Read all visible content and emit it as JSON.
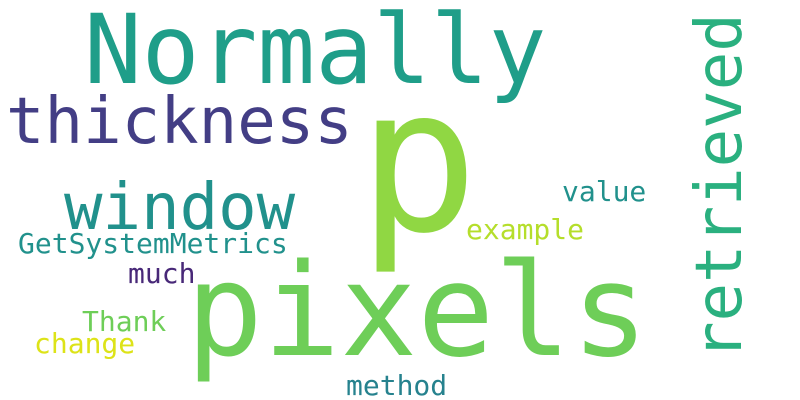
{
  "words": {
    "p": {
      "text": "p",
      "color": "#90d743"
    },
    "normally": {
      "text": "Normally",
      "color": "#1f9e89"
    },
    "pixels": {
      "text": "pixels",
      "color": "#6ece58"
    },
    "thickness": {
      "text": "thickness",
      "color": "#433e85"
    },
    "window": {
      "text": "window",
      "color": "#21918c"
    },
    "retrieved": {
      "text": "retrieved",
      "color": "#2ab07f"
    },
    "getsystemmetrics": {
      "text": "GetSystemMetrics",
      "color": "#21918c"
    },
    "value": {
      "text": "value",
      "color": "#21918c"
    },
    "example": {
      "text": "example",
      "color": "#b5de2b"
    },
    "much": {
      "text": "much",
      "color": "#482878"
    },
    "thank": {
      "text": "Thank",
      "color": "#6ece58"
    },
    "change": {
      "text": "change",
      "color": "#dde318"
    },
    "method": {
      "text": "method",
      "color": "#26828e"
    }
  }
}
